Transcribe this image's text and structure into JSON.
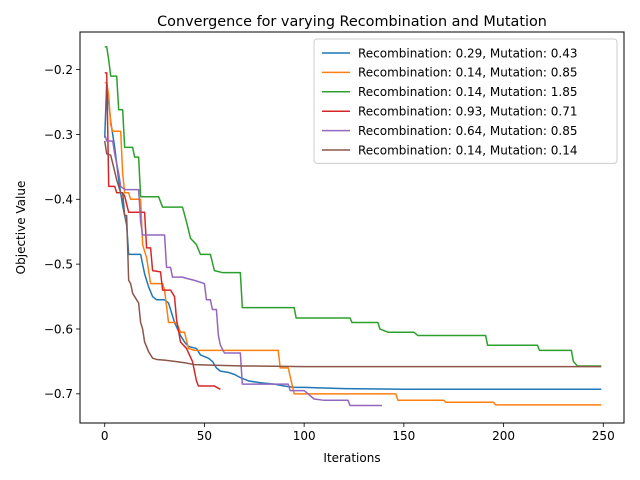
{
  "chart_data": {
    "type": "line",
    "title": "Convergence for varying Recombination and Mutation",
    "xlabel": "Iterations",
    "ylabel": "Objective Value",
    "xlim": [
      -12.4,
      260.4
    ],
    "ylim": [
      -0.745,
      -0.142
    ],
    "xticks": [
      0,
      50,
      100,
      150,
      200,
      250
    ],
    "xtick_labels": [
      "0",
      "50",
      "100",
      "150",
      "200",
      "250"
    ],
    "yticks": [
      -0.7,
      -0.6,
      -0.5,
      -0.4,
      -0.3,
      -0.2
    ],
    "ytick_labels": [
      "−0.7",
      "−0.6",
      "−0.5",
      "−0.4",
      "−0.3",
      "−0.2"
    ],
    "grid": false,
    "legend_position": "upper right",
    "series": [
      {
        "name": "Recombination: 0.29, Mutation: 0.43",
        "color": "#1f77b4",
        "points": [
          [
            0,
            -0.305
          ],
          [
            1,
            -0.22
          ],
          [
            3,
            -0.28
          ],
          [
            5,
            -0.32
          ],
          [
            7,
            -0.37
          ],
          [
            9,
            -0.41
          ],
          [
            11,
            -0.44
          ],
          [
            12,
            -0.485
          ],
          [
            14,
            -0.485
          ],
          [
            18,
            -0.485
          ],
          [
            19,
            -0.5
          ],
          [
            20,
            -0.515
          ],
          [
            22,
            -0.535
          ],
          [
            24,
            -0.55
          ],
          [
            26,
            -0.555
          ],
          [
            30,
            -0.555
          ],
          [
            32,
            -0.56
          ],
          [
            35,
            -0.59
          ],
          [
            38,
            -0.61
          ],
          [
            40,
            -0.62
          ],
          [
            42,
            -0.627
          ],
          [
            46,
            -0.63
          ],
          [
            48,
            -0.64
          ],
          [
            52,
            -0.645
          ],
          [
            54,
            -0.65
          ],
          [
            56,
            -0.66
          ],
          [
            58,
            -0.665
          ],
          [
            62,
            -0.667
          ],
          [
            65,
            -0.67
          ],
          [
            68,
            -0.675
          ],
          [
            72,
            -0.68
          ],
          [
            78,
            -0.683
          ],
          [
            85,
            -0.685
          ],
          [
            90,
            -0.688
          ],
          [
            95,
            -0.69
          ],
          [
            100,
            -0.69
          ],
          [
            120,
            -0.692
          ],
          [
            150,
            -0.693
          ],
          [
            200,
            -0.693
          ],
          [
            249,
            -0.693
          ]
        ]
      },
      {
        "name": "Recombination: 0.14, Mutation: 0.85",
        "color": "#ff7f0e",
        "points": [
          [
            0,
            -0.22
          ],
          [
            1,
            -0.22
          ],
          [
            2,
            -0.24
          ],
          [
            3,
            -0.285
          ],
          [
            4,
            -0.295
          ],
          [
            8,
            -0.295
          ],
          [
            9,
            -0.36
          ],
          [
            10,
            -0.39
          ],
          [
            12,
            -0.39
          ],
          [
            13,
            -0.4
          ],
          [
            18,
            -0.4
          ],
          [
            19,
            -0.47
          ],
          [
            21,
            -0.49
          ],
          [
            23,
            -0.53
          ],
          [
            29,
            -0.53
          ],
          [
            30,
            -0.54
          ],
          [
            32,
            -0.59
          ],
          [
            36,
            -0.59
          ],
          [
            38,
            -0.605
          ],
          [
            40,
            -0.605
          ],
          [
            42,
            -0.63
          ],
          [
            45,
            -0.633
          ],
          [
            60,
            -0.633
          ],
          [
            87,
            -0.633
          ],
          [
            88,
            -0.66
          ],
          [
            92,
            -0.66
          ],
          [
            95,
            -0.7
          ],
          [
            105,
            -0.7
          ],
          [
            146,
            -0.7
          ],
          [
            147,
            -0.71
          ],
          [
            170,
            -0.71
          ],
          [
            171,
            -0.713
          ],
          [
            195,
            -0.713
          ],
          [
            196,
            -0.717
          ],
          [
            249,
            -0.717
          ]
        ]
      },
      {
        "name": "Recombination: 0.14, Mutation: 1.85",
        "color": "#2ca02c",
        "points": [
          [
            0,
            -0.165
          ],
          [
            1,
            -0.165
          ],
          [
            2,
            -0.185
          ],
          [
            3,
            -0.21
          ],
          [
            6,
            -0.21
          ],
          [
            7,
            -0.262
          ],
          [
            9,
            -0.262
          ],
          [
            10,
            -0.32
          ],
          [
            14,
            -0.32
          ],
          [
            15,
            -0.335
          ],
          [
            17,
            -0.335
          ],
          [
            18,
            -0.396
          ],
          [
            27,
            -0.396
          ],
          [
            29,
            -0.412
          ],
          [
            39,
            -0.412
          ],
          [
            41,
            -0.435
          ],
          [
            43,
            -0.46
          ],
          [
            46,
            -0.47
          ],
          [
            48,
            -0.485
          ],
          [
            53,
            -0.485
          ],
          [
            55,
            -0.51
          ],
          [
            59,
            -0.513
          ],
          [
            68,
            -0.513
          ],
          [
            69,
            -0.567
          ],
          [
            95,
            -0.567
          ],
          [
            96,
            -0.583
          ],
          [
            123,
            -0.583
          ],
          [
            124,
            -0.59
          ],
          [
            137,
            -0.59
          ],
          [
            138,
            -0.6
          ],
          [
            142,
            -0.605
          ],
          [
            155,
            -0.605
          ],
          [
            157,
            -0.61
          ],
          [
            180,
            -0.61
          ],
          [
            191,
            -0.61
          ],
          [
            192,
            -0.625
          ],
          [
            217,
            -0.625
          ],
          [
            218,
            -0.633
          ],
          [
            234,
            -0.633
          ],
          [
            235,
            -0.65
          ],
          [
            237,
            -0.657
          ],
          [
            249,
            -0.657
          ]
        ]
      },
      {
        "name": "Recombination: 0.93, Mutation: 0.71",
        "color": "#d62728",
        "points": [
          [
            0,
            -0.205
          ],
          [
            1,
            -0.205
          ],
          [
            2,
            -0.38
          ],
          [
            5,
            -0.38
          ],
          [
            6,
            -0.39
          ],
          [
            9,
            -0.39
          ],
          [
            10,
            -0.395
          ],
          [
            12,
            -0.42
          ],
          [
            20,
            -0.42
          ],
          [
            21,
            -0.475
          ],
          [
            23,
            -0.475
          ],
          [
            24,
            -0.51
          ],
          [
            28,
            -0.512
          ],
          [
            29,
            -0.54
          ],
          [
            33,
            -0.54
          ],
          [
            35,
            -0.55
          ],
          [
            36,
            -0.585
          ],
          [
            38,
            -0.62
          ],
          [
            41,
            -0.63
          ],
          [
            44,
            -0.65
          ],
          [
            46,
            -0.68
          ],
          [
            47,
            -0.688
          ],
          [
            52,
            -0.688
          ],
          [
            55,
            -0.688
          ],
          [
            58,
            -0.693
          ]
        ]
      },
      {
        "name": "Recombination: 0.64, Mutation: 0.85",
        "color": "#9467bd",
        "points": [
          [
            0,
            -0.3
          ],
          [
            1,
            -0.31
          ],
          [
            4,
            -0.31
          ],
          [
            5,
            -0.33
          ],
          [
            7,
            -0.36
          ],
          [
            8,
            -0.38
          ],
          [
            10,
            -0.385
          ],
          [
            17,
            -0.385
          ],
          [
            18,
            -0.435
          ],
          [
            19,
            -0.455
          ],
          [
            30,
            -0.455
          ],
          [
            31,
            -0.505
          ],
          [
            33,
            -0.505
          ],
          [
            34,
            -0.52
          ],
          [
            39,
            -0.52
          ],
          [
            41,
            -0.522
          ],
          [
            45,
            -0.525
          ],
          [
            50,
            -0.53
          ],
          [
            51,
            -0.555
          ],
          [
            53,
            -0.555
          ],
          [
            54,
            -0.57
          ],
          [
            56,
            -0.57
          ],
          [
            57,
            -0.61
          ],
          [
            58,
            -0.625
          ],
          [
            60,
            -0.637
          ],
          [
            68,
            -0.637
          ],
          [
            69,
            -0.685
          ],
          [
            80,
            -0.685
          ],
          [
            92,
            -0.685
          ],
          [
            93,
            -0.695
          ],
          [
            100,
            -0.695
          ],
          [
            105,
            -0.708
          ],
          [
            110,
            -0.71
          ],
          [
            122,
            -0.71
          ],
          [
            123,
            -0.718
          ],
          [
            139,
            -0.718
          ]
        ]
      },
      {
        "name": "Recombination: 0.14, Mutation: 0.14",
        "color": "#8c564b",
        "points": [
          [
            0,
            -0.31
          ],
          [
            1,
            -0.33
          ],
          [
            3,
            -0.332
          ],
          [
            6,
            -0.37
          ],
          [
            8,
            -0.39
          ],
          [
            9,
            -0.39
          ],
          [
            10,
            -0.425
          ],
          [
            11,
            -0.425
          ],
          [
            12,
            -0.525
          ],
          [
            13,
            -0.53
          ],
          [
            14,
            -0.545
          ],
          [
            15,
            -0.55
          ],
          [
            16,
            -0.555
          ],
          [
            17,
            -0.56
          ],
          [
            18,
            -0.59
          ],
          [
            19,
            -0.6
          ],
          [
            20,
            -0.62
          ],
          [
            22,
            -0.635
          ],
          [
            24,
            -0.645
          ],
          [
            26,
            -0.647
          ],
          [
            30,
            -0.648
          ],
          [
            35,
            -0.65
          ],
          [
            40,
            -0.652
          ],
          [
            45,
            -0.655
          ],
          [
            55,
            -0.656
          ],
          [
            70,
            -0.657
          ],
          [
            100,
            -0.658
          ],
          [
            150,
            -0.658
          ],
          [
            200,
            -0.658
          ],
          [
            249,
            -0.658
          ]
        ]
      }
    ]
  }
}
